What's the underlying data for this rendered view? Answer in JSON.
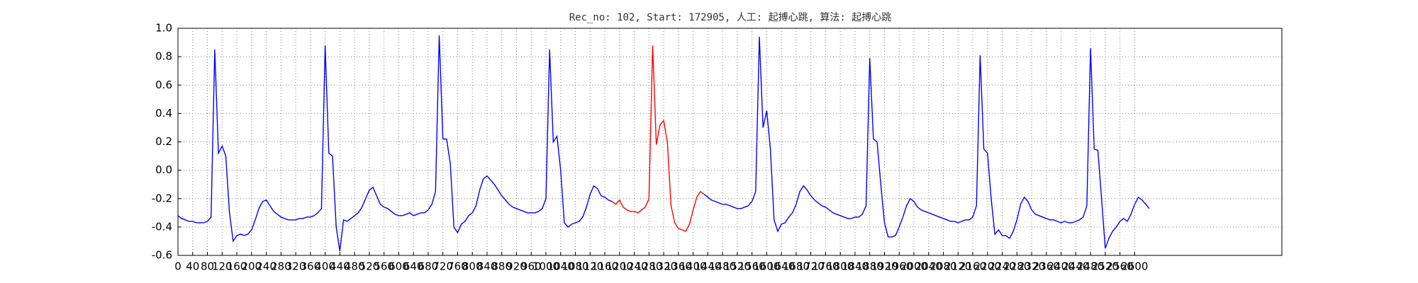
{
  "chart_data": {
    "type": "line",
    "title": "Rec_no: 102, Start: 172905, 人工: 起搏心跳, 算法: 起搏心跳",
    "x": [
      0,
      10,
      20,
      30,
      40,
      50,
      60,
      70,
      80,
      90,
      100,
      110,
      120,
      130,
      140,
      150,
      160,
      170,
      180,
      190,
      200,
      210,
      220,
      230,
      240,
      250,
      260,
      270,
      280,
      290,
      300,
      310,
      320,
      330,
      340,
      350,
      360,
      370,
      380,
      390,
      400,
      410,
      420,
      430,
      440,
      450,
      460,
      470,
      480,
      490,
      500,
      510,
      520,
      530,
      540,
      550,
      560,
      570,
      580,
      590,
      600,
      610,
      620,
      630,
      640,
      650,
      660,
      670,
      680,
      690,
      700,
      710,
      720,
      730,
      740,
      750,
      760,
      770,
      780,
      790,
      800,
      810,
      820,
      830,
      840,
      850,
      860,
      870,
      880,
      890,
      900,
      910,
      920,
      930,
      940,
      950,
      960,
      970,
      980,
      990,
      1000,
      1010,
      1020,
      1030,
      1040,
      1050,
      1060,
      1070,
      1080,
      1090,
      1100,
      1110,
      1120,
      1130,
      1140,
      1150,
      1160,
      1170,
      1180,
      1190,
      1200,
      1210,
      1220,
      1230,
      1240,
      1250,
      1260,
      1270,
      1280,
      1290,
      1300,
      1310,
      1320,
      1330,
      1340,
      1350,
      1360,
      1370,
      1380,
      1390,
      1400,
      1410,
      1420,
      1430,
      1440,
      1450,
      1460,
      1470,
      1480,
      1490,
      1500,
      1510,
      1520,
      1530,
      1540,
      1550,
      1560,
      1570,
      1580,
      1590,
      1600,
      1610,
      1620,
      1630,
      1640,
      1650,
      1660,
      1670,
      1680,
      1690,
      1700,
      1710,
      1720,
      1730,
      1740,
      1750,
      1760,
      1770,
      1780,
      1790,
      1800,
      1810,
      1820,
      1830,
      1840,
      1850,
      1860,
      1870,
      1880,
      1890,
      1900,
      1910,
      1920,
      1930,
      1940,
      1950,
      1960,
      1970,
      1980,
      1990,
      2000,
      2010,
      2020,
      2030,
      2040,
      2050,
      2060,
      2070,
      2080,
      2090,
      2100,
      2110,
      2120,
      2130,
      2140,
      2150,
      2160,
      2170,
      2180,
      2190,
      2200,
      2210,
      2220,
      2230,
      2240,
      2250,
      2260,
      2270,
      2280,
      2290,
      2300,
      2310,
      2320,
      2330,
      2340,
      2350,
      2360,
      2370,
      2380,
      2390,
      2400,
      2410,
      2420,
      2430,
      2440,
      2450,
      2460,
      2470,
      2480,
      2490,
      2500,
      2510,
      2520,
      2530,
      2540,
      2550,
      2560,
      2570,
      2580,
      2590,
      2600,
      2610,
      2620,
      2630,
      2640
    ],
    "series": [
      {
        "color": "#0000ff",
        "values": [
          -0.32,
          -0.34,
          -0.35,
          -0.36,
          -0.36,
          -0.37,
          -0.37,
          -0.37,
          -0.36,
          -0.33,
          0.85,
          0.12,
          0.17,
          0.1,
          -0.3,
          -0.5,
          -0.46,
          -0.45,
          -0.46,
          -0.45,
          -0.42,
          -0.35,
          -0.27,
          -0.22,
          -0.21,
          -0.25,
          -0.29,
          -0.31,
          -0.33,
          -0.34,
          -0.35,
          -0.35,
          -0.35,
          -0.34,
          -0.34,
          -0.33,
          -0.33,
          -0.32,
          -0.3,
          -0.27,
          0.88,
          0.12,
          0.1,
          -0.4,
          -0.57,
          -0.35,
          -0.36,
          -0.34,
          -0.32,
          -0.3,
          -0.26,
          -0.2,
          -0.14,
          -0.12,
          -0.18,
          -0.24,
          -0.26,
          -0.27,
          -0.29,
          -0.31,
          -0.32,
          -0.32,
          -0.31,
          -0.3,
          -0.32,
          -0.31,
          -0.3,
          -0.3,
          -0.28,
          -0.24,
          -0.15,
          0.95,
          0.22,
          0.22,
          0.05,
          -0.4,
          -0.44,
          -0.38,
          -0.36,
          -0.32,
          -0.3,
          -0.25,
          -0.14,
          -0.06,
          -0.04,
          -0.07,
          -0.1,
          -0.14,
          -0.18,
          -0.21,
          -0.24,
          -0.26,
          -0.27,
          -0.28,
          -0.29,
          -0.3,
          -0.3,
          -0.3,
          -0.29,
          -0.27,
          -0.2,
          0.85,
          0.2,
          0.24,
          0.0,
          -0.37,
          -0.4,
          -0.38,
          -0.37,
          -0.36,
          -0.33,
          -0.26,
          -0.17,
          -0.11,
          -0.13,
          -0.18,
          -0.19,
          -0.21,
          -0.22,
          null,
          null,
          null,
          null,
          null,
          null,
          null,
          null,
          null,
          null,
          null,
          null,
          null,
          null,
          null,
          null,
          null,
          null,
          null,
          null,
          null,
          null,
          null,
          null,
          -0.17,
          -0.19,
          -0.21,
          -0.22,
          -0.23,
          -0.24,
          -0.24,
          -0.25,
          -0.26,
          -0.27,
          -0.27,
          -0.26,
          -0.25,
          -0.22,
          -0.15,
          0.94,
          0.3,
          0.42,
          0.15,
          -0.35,
          -0.43,
          -0.38,
          -0.37,
          -0.33,
          -0.3,
          -0.24,
          -0.15,
          -0.11,
          -0.14,
          -0.18,
          -0.21,
          -0.23,
          -0.25,
          -0.26,
          -0.28,
          -0.3,
          -0.31,
          -0.32,
          -0.33,
          -0.34,
          -0.34,
          -0.33,
          -0.33,
          -0.31,
          -0.25,
          0.79,
          0.22,
          0.2,
          -0.1,
          -0.37,
          -0.47,
          -0.47,
          -0.46,
          -0.4,
          -0.33,
          -0.25,
          -0.2,
          -0.22,
          -0.26,
          -0.28,
          -0.29,
          -0.3,
          -0.31,
          -0.32,
          -0.33,
          -0.34,
          -0.35,
          -0.36,
          -0.36,
          -0.37,
          -0.36,
          -0.35,
          -0.35,
          -0.33,
          -0.25,
          0.81,
          0.15,
          0.12,
          -0.2,
          -0.45,
          -0.42,
          -0.46,
          -0.46,
          -0.48,
          -0.43,
          -0.35,
          -0.24,
          -0.19,
          -0.22,
          -0.28,
          -0.31,
          -0.32,
          -0.33,
          -0.34,
          -0.35,
          -0.35,
          -0.36,
          -0.37,
          -0.36,
          -0.37,
          -0.37,
          -0.36,
          -0.35,
          -0.33,
          -0.25,
          0.86,
          0.15,
          0.14,
          -0.2,
          -0.55,
          -0.48,
          -0.43,
          -0.4,
          -0.36,
          -0.34,
          -0.36,
          -0.31,
          -0.24,
          -0.19,
          -0.21,
          -0.24,
          -0.27
        ]
      },
      {
        "color": "#ff0000",
        "values": [
          null,
          null,
          null,
          null,
          null,
          null,
          null,
          null,
          null,
          null,
          null,
          null,
          null,
          null,
          null,
          null,
          null,
          null,
          null,
          null,
          null,
          null,
          null,
          null,
          null,
          null,
          null,
          null,
          null,
          null,
          null,
          null,
          null,
          null,
          null,
          null,
          null,
          null,
          null,
          null,
          null,
          null,
          null,
          null,
          null,
          null,
          null,
          null,
          null,
          null,
          null,
          null,
          null,
          null,
          null,
          null,
          null,
          null,
          null,
          null,
          null,
          null,
          null,
          null,
          null,
          null,
          null,
          null,
          null,
          null,
          null,
          null,
          null,
          null,
          null,
          null,
          null,
          null,
          null,
          null,
          null,
          null,
          null,
          null,
          null,
          null,
          null,
          null,
          null,
          null,
          null,
          null,
          null,
          null,
          null,
          null,
          null,
          null,
          null,
          null,
          null,
          null,
          null,
          null,
          null,
          null,
          null,
          null,
          null,
          null,
          null,
          null,
          null,
          null,
          null,
          null,
          null,
          null,
          -0.22,
          -0.24,
          -0.21,
          -0.26,
          -0.28,
          -0.29,
          -0.29,
          -0.3,
          -0.28,
          -0.26,
          -0.2,
          0.88,
          0.18,
          0.32,
          0.35,
          0.2,
          -0.25,
          -0.37,
          -0.41,
          -0.42,
          -0.43,
          -0.38,
          -0.28,
          -0.19,
          -0.15,
          -0.17,
          null,
          null,
          null,
          null,
          null,
          null,
          null,
          null,
          null,
          null,
          null,
          null,
          null,
          null,
          null,
          null,
          null,
          null,
          null,
          null,
          null,
          null,
          null,
          null,
          null,
          null,
          null,
          null,
          null,
          null,
          null,
          null,
          null,
          null,
          null,
          null,
          null,
          null,
          null,
          null,
          null,
          null,
          null,
          null,
          null,
          null,
          null,
          null,
          null,
          null,
          null,
          null,
          null,
          null,
          null,
          null,
          null,
          null,
          null,
          null,
          null,
          null,
          null,
          null,
          null,
          null,
          null,
          null,
          null,
          null,
          null,
          null,
          null,
          null,
          null,
          null,
          null,
          null,
          null,
          null,
          null,
          null,
          null,
          null,
          null,
          null,
          null,
          null,
          null,
          null,
          null,
          null,
          null,
          null,
          null,
          null,
          null,
          null,
          null,
          null,
          null,
          null,
          null,
          null,
          null,
          null,
          null,
          null,
          null,
          null,
          null,
          null,
          null,
          null,
          null,
          null,
          null,
          null,
          null,
          null,
          null
        ]
      }
    ],
    "xlim": [
      0,
      3000
    ],
    "xticks": [
      0,
      40,
      80,
      120,
      160,
      200,
      240,
      280,
      320,
      360,
      400,
      440,
      480,
      520,
      560,
      600,
      640,
      680,
      720,
      760,
      800,
      840,
      880,
      920,
      960,
      1000,
      1040,
      1080,
      1120,
      1160,
      1200,
      1240,
      1280,
      1320,
      1360,
      1400,
      1440,
      1480,
      1520,
      1560,
      1600,
      1640,
      1680,
      1720,
      1760,
      1800,
      1840,
      1880,
      1920,
      1960,
      2000,
      2040,
      2080,
      2120,
      2160,
      2200,
      2240,
      2280,
      2320,
      2360,
      2400,
      2440,
      2480,
      2520,
      2560,
      2600
    ],
    "ylim": [
      -0.6,
      1.0
    ],
    "yticks": [
      -0.6,
      -0.4,
      -0.2,
      {
        "value": 0,
        "label": "0.0"
      },
      0.2,
      0.4,
      0.6,
      0.8,
      {
        "value": 1,
        "label": "1.0"
      }
    ],
    "grid": true
  }
}
